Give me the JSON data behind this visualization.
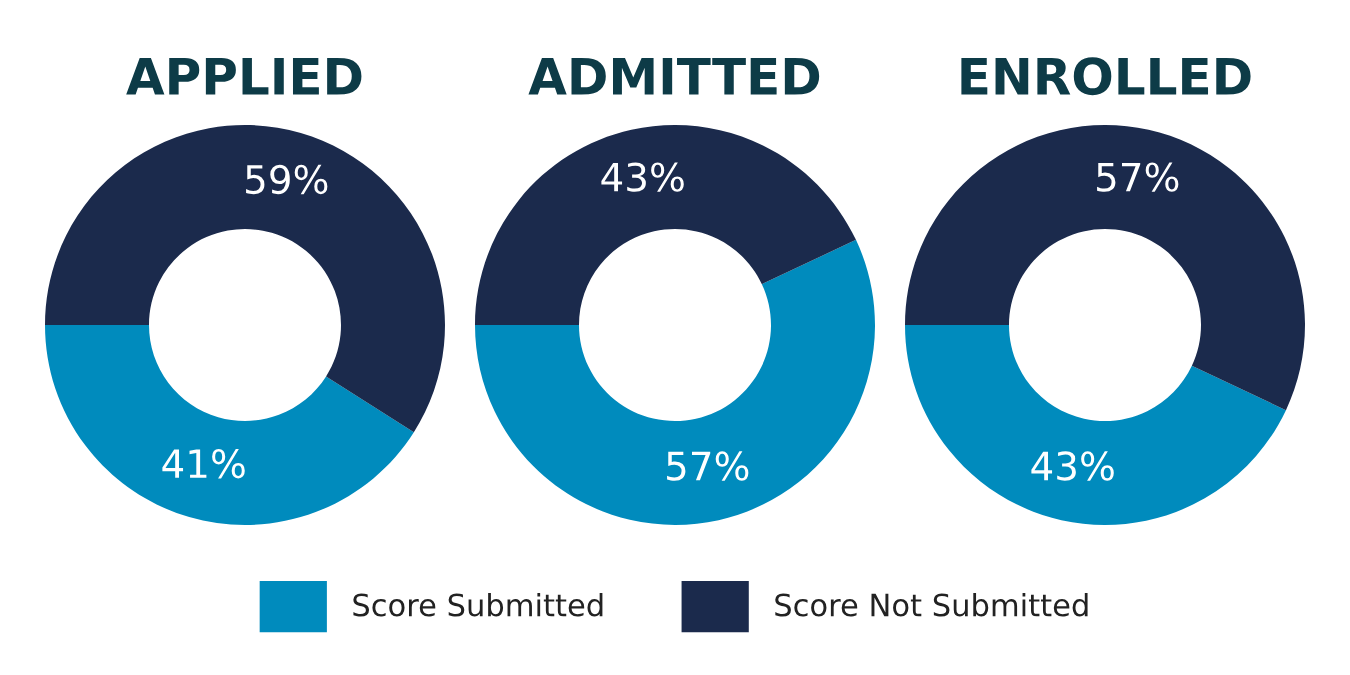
{
  "chart_data": [
    {
      "type": "donut",
      "title": "APPLIED",
      "categories": [
        "Score Submitted",
        "Score Not Submitted"
      ],
      "values": [
        41,
        59
      ],
      "value_labels": [
        "41%",
        "59%"
      ],
      "colors": [
        "#008bbd",
        "#1b2a4c"
      ],
      "legend": "bottom"
    },
    {
      "type": "donut",
      "title": "ADMITTED",
      "categories": [
        null,
        null
      ],
      "values": [
        57,
        43
      ],
      "value_labels": [
        "57%",
        "43%"
      ],
      "colors": [
        "#008bbd",
        "#1b2a4c"
      ]
    },
    {
      "type": "donut",
      "title": "ENROLLED",
      "categories": [
        null,
        null
      ],
      "values": [
        43,
        57
      ],
      "value_labels": [
        "43%",
        "57%"
      ],
      "colors": [
        "#008bbd",
        "#1b2a4c"
      ]
    }
  ]
}
